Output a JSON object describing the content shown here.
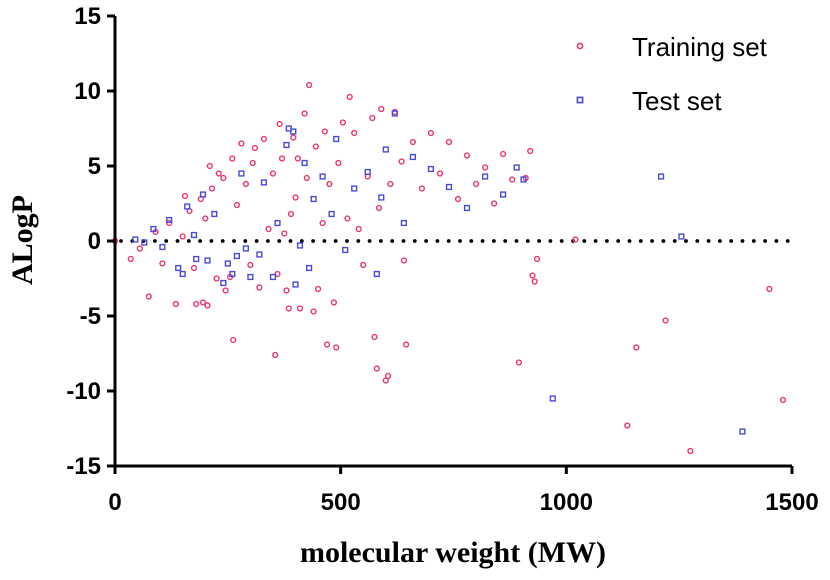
{
  "chart_data": {
    "type": "scatter",
    "xlabel": "molecular weight (MW)",
    "ylabel": "ALogP",
    "xlim": [
      0,
      1500
    ],
    "ylim": [
      -15,
      15
    ],
    "xticks": [
      0,
      500,
      1000,
      1500
    ],
    "yticks": [
      15,
      10,
      5,
      0,
      -5,
      -10,
      -15
    ],
    "legend_position": "top-right",
    "reference_line": {
      "y": 0,
      "style": "dotted",
      "from_x": 0,
      "to_x": 1500
    },
    "series": [
      {
        "name": "Training set",
        "marker": "circle",
        "color": "#e8356a",
        "points": [
          [
            0,
            0
          ],
          [
            35,
            -1.2
          ],
          [
            55,
            -0.5
          ],
          [
            75,
            -3.7
          ],
          [
            90,
            0.6
          ],
          [
            105,
            -1.5
          ],
          [
            120,
            1.2
          ],
          [
            135,
            -4.2
          ],
          [
            150,
            0.3
          ],
          [
            155,
            3
          ],
          [
            165,
            2
          ],
          [
            175,
            -1.8
          ],
          [
            180,
            -4.2
          ],
          [
            190,
            2.8
          ],
          [
            195,
            -4.1
          ],
          [
            200,
            1.5
          ],
          [
            205,
            -4.3
          ],
          [
            210,
            5
          ],
          [
            215,
            3.5
          ],
          [
            225,
            -2.5
          ],
          [
            230,
            4.5
          ],
          [
            240,
            4.2
          ],
          [
            245,
            -3.3
          ],
          [
            255,
            -2.4
          ],
          [
            260,
            5.5
          ],
          [
            262,
            -6.6
          ],
          [
            270,
            2.4
          ],
          [
            280,
            6.5
          ],
          [
            290,
            3.8
          ],
          [
            300,
            -1.6
          ],
          [
            305,
            5.2
          ],
          [
            310,
            6.2
          ],
          [
            320,
            -3.1
          ],
          [
            330,
            6.8
          ],
          [
            340,
            0.8
          ],
          [
            350,
            4.5
          ],
          [
            355,
            -7.6
          ],
          [
            360,
            -2.2
          ],
          [
            365,
            7.8
          ],
          [
            370,
            5.5
          ],
          [
            375,
            0.5
          ],
          [
            380,
            -3.3
          ],
          [
            385,
            -4.5
          ],
          [
            390,
            1.8
          ],
          [
            395,
            6.9
          ],
          [
            400,
            2.9
          ],
          [
            405,
            5.5
          ],
          [
            410,
            -4.5
          ],
          [
            420,
            8.5
          ],
          [
            425,
            4.2
          ],
          [
            430,
            10.4
          ],
          [
            440,
            -4.7
          ],
          [
            445,
            6.3
          ],
          [
            450,
            -3.2
          ],
          [
            460,
            1.2
          ],
          [
            465,
            7.3
          ],
          [
            470,
            -6.9
          ],
          [
            475,
            3.8
          ],
          [
            485,
            -4.1
          ],
          [
            490,
            -7.1
          ],
          [
            495,
            5.2
          ],
          [
            505,
            7.9
          ],
          [
            515,
            1.5
          ],
          [
            520,
            9.6
          ],
          [
            530,
            7.2
          ],
          [
            540,
            0.8
          ],
          [
            550,
            -1.6
          ],
          [
            560,
            4.3
          ],
          [
            570,
            8.2
          ],
          [
            575,
            -6.4
          ],
          [
            580,
            -8.5
          ],
          [
            585,
            2.2
          ],
          [
            590,
            8.8
          ],
          [
            600,
            -9.3
          ],
          [
            605,
            -9
          ],
          [
            610,
            3.8
          ],
          [
            620,
            8.6
          ],
          [
            635,
            5.3
          ],
          [
            640,
            -1.3
          ],
          [
            645,
            -6.9
          ],
          [
            660,
            6.6
          ],
          [
            680,
            3.5
          ],
          [
            700,
            7.2
          ],
          [
            720,
            4.5
          ],
          [
            740,
            6.6
          ],
          [
            760,
            2.8
          ],
          [
            780,
            5.7
          ],
          [
            800,
            3.8
          ],
          [
            820,
            4.9
          ],
          [
            840,
            2.5
          ],
          [
            860,
            5.8
          ],
          [
            880,
            4.1
          ],
          [
            895,
            -8.1
          ],
          [
            910,
            4.2
          ],
          [
            920,
            6
          ],
          [
            925,
            -2.3
          ],
          [
            930,
            -2.7
          ],
          [
            935,
            -1.2
          ],
          [
            1020,
            0.1
          ],
          [
            1135,
            -12.3
          ],
          [
            1155,
            -7.1
          ],
          [
            1220,
            -5.3
          ],
          [
            1275,
            -14
          ],
          [
            1450,
            -3.2
          ],
          [
            1480,
            -10.6
          ]
        ]
      },
      {
        "name": "Test set",
        "marker": "square",
        "color": "#4a4ad8",
        "points": [
          [
            45,
            0.1
          ],
          [
            65,
            -0.1
          ],
          [
            85,
            0.8
          ],
          [
            105,
            -0.4
          ],
          [
            120,
            1.4
          ],
          [
            140,
            -1.8
          ],
          [
            150,
            -2.2
          ],
          [
            160,
            2.3
          ],
          [
            175,
            0.4
          ],
          [
            180,
            -1.2
          ],
          [
            195,
            3.1
          ],
          [
            205,
            -1.3
          ],
          [
            220,
            1.8
          ],
          [
            240,
            -2.8
          ],
          [
            250,
            -1.5
          ],
          [
            260,
            -2.2
          ],
          [
            270,
            -1
          ],
          [
            280,
            4.5
          ],
          [
            290,
            -0.5
          ],
          [
            300,
            -2.4
          ],
          [
            320,
            -0.9
          ],
          [
            330,
            3.9
          ],
          [
            350,
            -2.4
          ],
          [
            360,
            1.2
          ],
          [
            380,
            6.4
          ],
          [
            385,
            7.5
          ],
          [
            395,
            7.3
          ],
          [
            400,
            -2.9
          ],
          [
            410,
            -0.3
          ],
          [
            420,
            5.2
          ],
          [
            430,
            -1.8
          ],
          [
            440,
            2.8
          ],
          [
            460,
            4.3
          ],
          [
            480,
            1.8
          ],
          [
            490,
            6.8
          ],
          [
            510,
            -0.6
          ],
          [
            530,
            3.5
          ],
          [
            560,
            4.6
          ],
          [
            580,
            -2.2
          ],
          [
            590,
            2.9
          ],
          [
            600,
            6.1
          ],
          [
            620,
            8.5
          ],
          [
            640,
            1.2
          ],
          [
            660,
            5.6
          ],
          [
            700,
            4.8
          ],
          [
            740,
            3.6
          ],
          [
            780,
            2.2
          ],
          [
            820,
            4.3
          ],
          [
            860,
            3.1
          ],
          [
            890,
            4.9
          ],
          [
            905,
            4.1
          ],
          [
            970,
            -10.5
          ],
          [
            1210,
            4.3
          ],
          [
            1255,
            0.3
          ],
          [
            1390,
            -12.7
          ]
        ]
      }
    ]
  }
}
